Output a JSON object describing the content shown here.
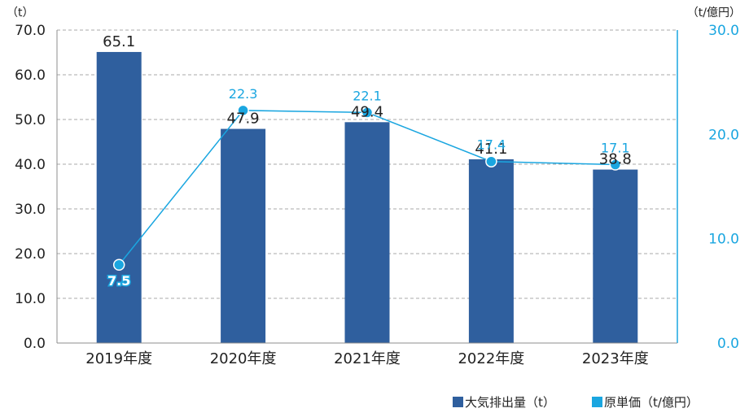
{
  "chart_data": {
    "type": "bar",
    "categories": [
      "2019年度",
      "2020年度",
      "2021年度",
      "2022年度",
      "2023年度"
    ],
    "series": [
      {
        "name": "大気排出量（t）",
        "type": "bar",
        "axis": "left",
        "color": "#2f5f9e",
        "values": [
          65.1,
          47.9,
          49.4,
          41.1,
          38.8
        ]
      },
      {
        "name": "原単価（t/億円）",
        "type": "line",
        "axis": "right",
        "color": "#1aa6e0",
        "values": [
          7.5,
          22.3,
          22.1,
          17.4,
          17.1
        ]
      }
    ],
    "bar_labels": [
      "65.1",
      "47.9",
      "49.4",
      "41.1",
      "38.8"
    ],
    "line_labels": [
      "7.5",
      "22.3",
      "22.1",
      "17.4",
      "17.1"
    ],
    "y_left": {
      "unit": "（t）",
      "range": [
        0,
        70
      ],
      "ticks": [
        "0.0",
        "10.0",
        "20.0",
        "30.0",
        "40.0",
        "50.0",
        "60.0",
        "70.0"
      ]
    },
    "y_right": {
      "unit": "（t/億円）",
      "range": [
        0,
        30
      ],
      "ticks": [
        "0.0",
        "10.0",
        "20.0",
        "30.0"
      ]
    },
    "grid": "horizontal-dashed",
    "legend_position": "bottom-right"
  }
}
